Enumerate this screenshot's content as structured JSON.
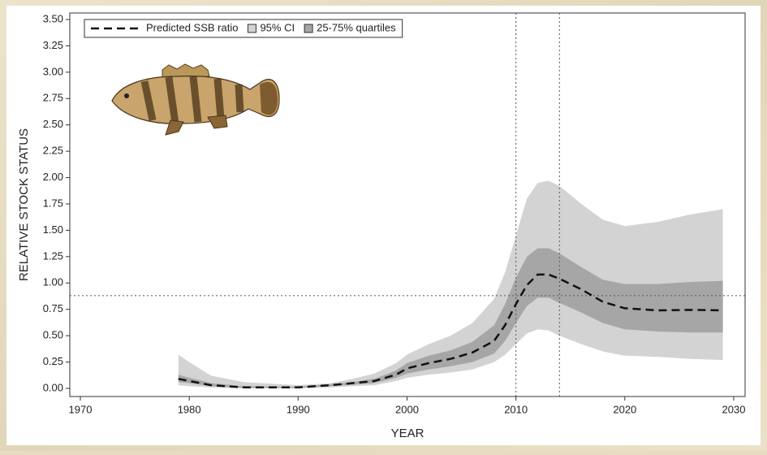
{
  "chart_data": {
    "type": "line",
    "x_label": "YEAR",
    "y_label": "RELATIVE STOCK STATUS",
    "x": [
      1979,
      1980,
      1982,
      1985,
      1990,
      1993,
      1995,
      1997,
      1999,
      2000,
      2002,
      2004,
      2006,
      2008,
      2009,
      2010,
      2011,
      2012,
      2013,
      2014,
      2016,
      2018,
      2020,
      2023,
      2026,
      2029
    ],
    "series": [
      {
        "name": "Predicted SSB ratio",
        "color": "#111111",
        "style": "dashed",
        "values": [
          0.09,
          0.07,
          0.03,
          0.01,
          0.01,
          0.03,
          0.05,
          0.07,
          0.13,
          0.19,
          0.24,
          0.28,
          0.34,
          0.45,
          0.6,
          0.8,
          0.98,
          1.08,
          1.08,
          1.04,
          0.94,
          0.82,
          0.76,
          0.74,
          0.745,
          0.74
        ]
      },
      {
        "name": "95% CI",
        "color": "#d3d3d3",
        "style": "band",
        "upper": [
          0.32,
          0.25,
          0.12,
          0.06,
          0.03,
          0.05,
          0.09,
          0.14,
          0.24,
          0.32,
          0.42,
          0.5,
          0.62,
          0.85,
          1.1,
          1.45,
          1.8,
          1.95,
          1.97,
          1.92,
          1.75,
          1.6,
          1.54,
          1.58,
          1.65,
          1.7
        ],
        "lower": [
          0.03,
          0.02,
          0.01,
          0.0,
          0.0,
          0.01,
          0.02,
          0.03,
          0.07,
          0.1,
          0.13,
          0.15,
          0.18,
          0.25,
          0.32,
          0.42,
          0.52,
          0.56,
          0.55,
          0.5,
          0.42,
          0.35,
          0.31,
          0.3,
          0.28,
          0.27
        ]
      },
      {
        "name": "25-75% quartiles",
        "color": "#a6a6a6",
        "style": "band",
        "upper": [
          0.13,
          0.1,
          0.05,
          0.02,
          0.015,
          0.04,
          0.06,
          0.09,
          0.17,
          0.24,
          0.31,
          0.36,
          0.44,
          0.6,
          0.8,
          1.05,
          1.25,
          1.33,
          1.33,
          1.28,
          1.15,
          1.03,
          0.99,
          0.99,
          1.01,
          1.02
        ],
        "lower": [
          0.06,
          0.05,
          0.02,
          0.005,
          0.005,
          0.02,
          0.035,
          0.05,
          0.1,
          0.14,
          0.18,
          0.21,
          0.25,
          0.33,
          0.45,
          0.62,
          0.78,
          0.86,
          0.86,
          0.81,
          0.72,
          0.62,
          0.56,
          0.54,
          0.53,
          0.53
        ]
      }
    ],
    "reference_lines": {
      "x": [
        2010,
        2014
      ],
      "y": [
        0.88
      ]
    },
    "xlim": [
      1970,
      2030
    ],
    "xticks": [
      1970,
      1980,
      1990,
      2000,
      2010,
      2020,
      2030
    ],
    "ylim": [
      0,
      3.5
    ],
    "yticks": [
      {
        "value": 0,
        "label": "0.00"
      },
      {
        "value": 0.25,
        "label": "0.25"
      },
      {
        "value": 0.5,
        "label": "0.50"
      },
      {
        "value": 0.75,
        "label": "0.75"
      },
      {
        "value": 1,
        "label": "1.00"
      },
      {
        "value": 1.25,
        "label": "1.25"
      },
      {
        "value": 1.5,
        "label": "1.50"
      },
      {
        "value": 1.75,
        "label": "1.75"
      },
      {
        "value": 2,
        "label": "2.00"
      },
      {
        "value": 2.25,
        "label": "2.25"
      },
      {
        "value": 2.5,
        "label": "2.50"
      },
      {
        "value": 2.75,
        "label": "2.75"
      },
      {
        "value": 3,
        "label": "3.00"
      },
      {
        "value": 3.25,
        "label": "3.25"
      },
      {
        "value": 3.5,
        "label": "3.50"
      }
    ],
    "legend": "top-left"
  }
}
